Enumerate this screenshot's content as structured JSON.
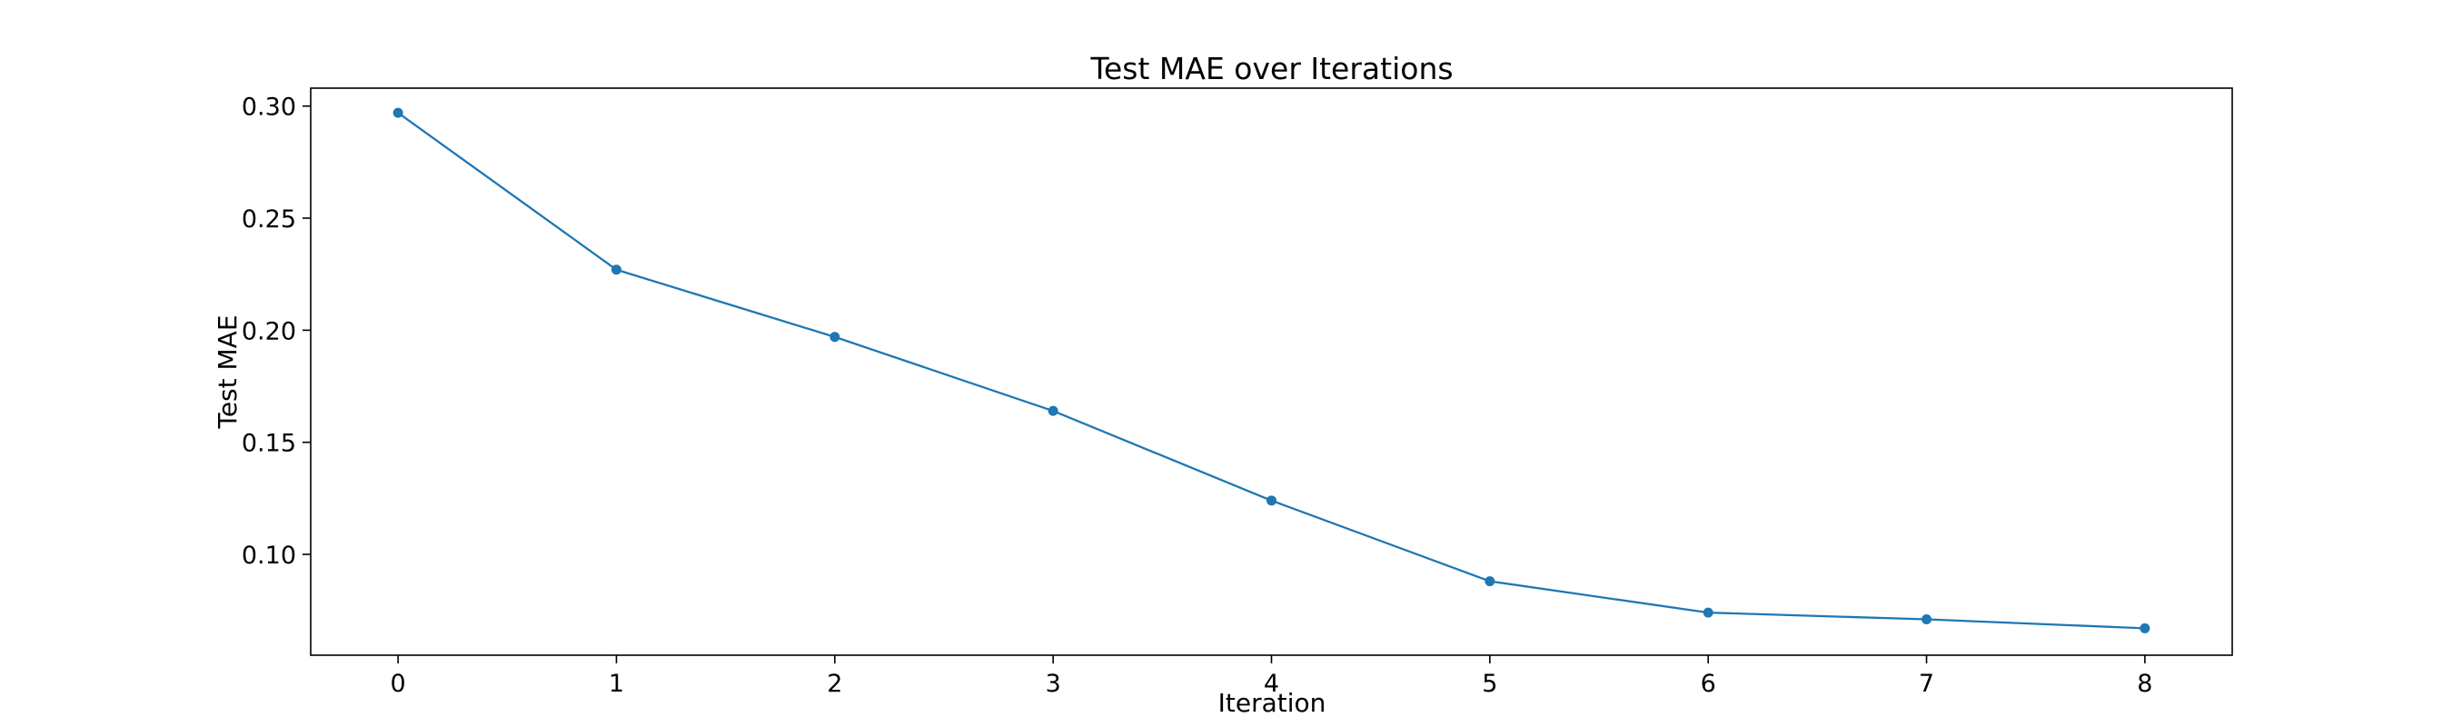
{
  "chart_data": {
    "type": "line",
    "title": "Test MAE over Iterations",
    "xlabel": "Iteration",
    "ylabel": "Test MAE",
    "x": [
      0,
      1,
      2,
      3,
      4,
      5,
      6,
      7,
      8
    ],
    "series": [
      {
        "values": [
          0.297,
          0.227,
          0.197,
          0.164,
          0.124,
          0.088,
          0.074,
          0.071,
          0.067
        ],
        "color": "#1f77b4",
        "marker": "circle"
      }
    ],
    "xlim": [
      -0.4,
      8.4
    ],
    "ylim": [
      0.055,
      0.308
    ],
    "xticks": [
      "0",
      "1",
      "2",
      "3",
      "4",
      "5",
      "6",
      "7",
      "8"
    ],
    "yticks": [
      "0.10",
      "0.15",
      "0.20",
      "0.25",
      "0.30"
    ],
    "grid": false,
    "legend": "none"
  }
}
